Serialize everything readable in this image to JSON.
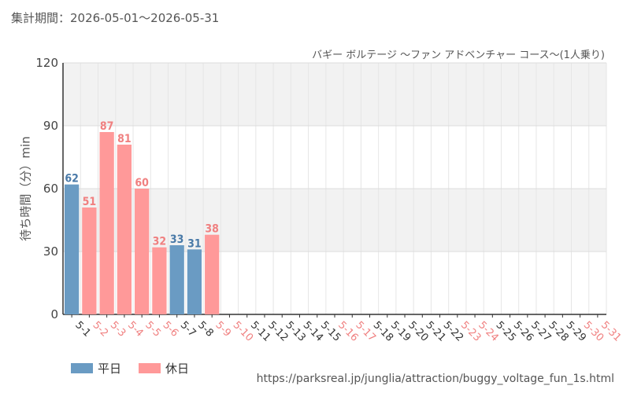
{
  "header": {
    "period": "集計期間：2026-05-01～2026-05-31",
    "subtitle": "バギー ボルテージ ～ファン アドベンチャー コース～(1人乗り)"
  },
  "legend": {
    "weekday": "平日",
    "holiday": "休日"
  },
  "source_url": "https://parksreal.jp/junglia/attraction/buggy_voltage_fun_1s.html",
  "colors": {
    "weekday": "#6a9bc3",
    "holiday": "#ff9999",
    "weekday_label": "#4a7aa8",
    "holiday_label": "#f08080",
    "band": "#f2f2f2"
  },
  "chart_data": {
    "type": "bar",
    "ylabel": "待ち時間（分）min",
    "ylim": [
      0,
      120
    ],
    "yticks": [
      0,
      30,
      60,
      90,
      120
    ],
    "categories": [
      "5-1",
      "5-2",
      "5-3",
      "5-4",
      "5-5",
      "5-6",
      "5-7",
      "5-8",
      "5-9",
      "5-10",
      "5-11",
      "5-12",
      "5-13",
      "5-14",
      "5-15",
      "5-16",
      "5-17",
      "5-18",
      "5-19",
      "5-20",
      "5-21",
      "5-22",
      "5-23",
      "5-24",
      "5-25",
      "5-26",
      "5-27",
      "5-28",
      "5-29",
      "5-30",
      "5-31"
    ],
    "day_type": [
      "weekday",
      "holiday",
      "holiday",
      "holiday",
      "holiday",
      "holiday",
      "weekday",
      "weekday",
      "holiday",
      "holiday",
      "weekday",
      "weekday",
      "weekday",
      "weekday",
      "weekday",
      "holiday",
      "holiday",
      "weekday",
      "weekday",
      "weekday",
      "weekday",
      "weekday",
      "holiday",
      "holiday",
      "weekday",
      "weekday",
      "weekday",
      "weekday",
      "weekday",
      "holiday",
      "holiday"
    ],
    "values": [
      62,
      51,
      87,
      81,
      60,
      32,
      33,
      31,
      38,
      null,
      null,
      null,
      null,
      null,
      null,
      null,
      null,
      null,
      null,
      null,
      null,
      null,
      null,
      null,
      null,
      null,
      null,
      null,
      null,
      null,
      null
    ],
    "grid": true
  }
}
